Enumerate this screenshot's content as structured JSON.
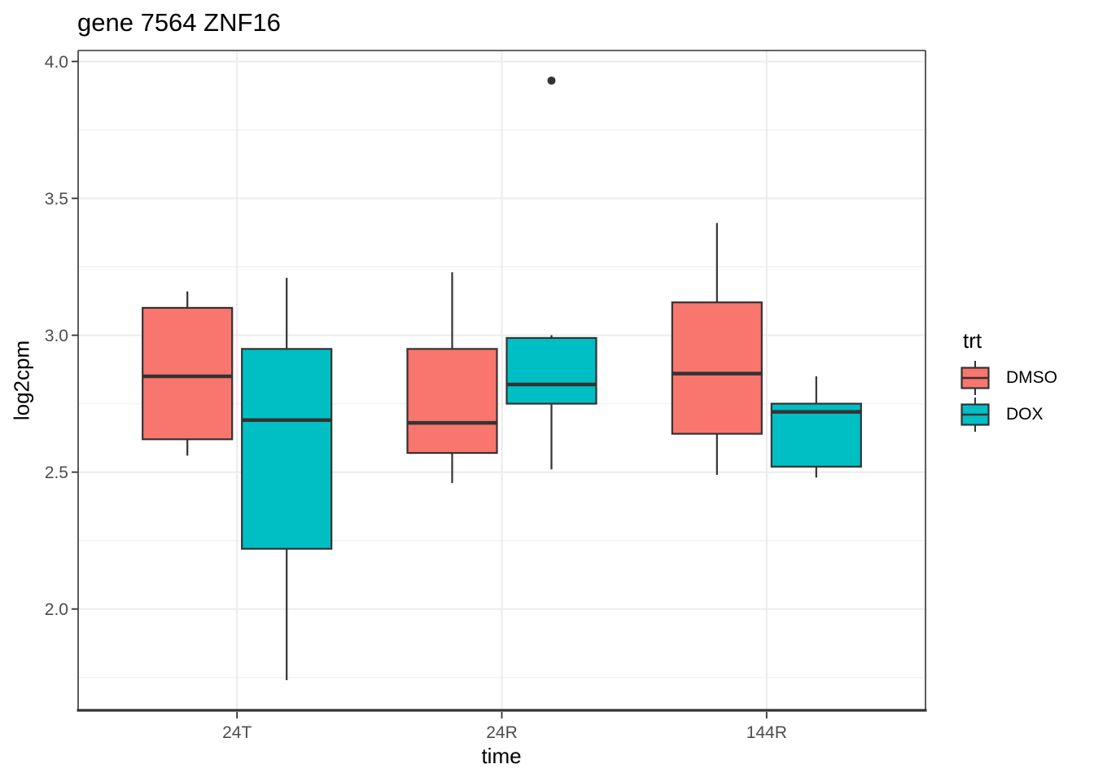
{
  "title": "gene 7564 ZNF16",
  "x_axis": {
    "title": "time",
    "categories": [
      "24T",
      "24R",
      "144R"
    ]
  },
  "y_axis": {
    "title": "log2cpm",
    "tick_labels": [
      "4.0",
      "3.5",
      "3.0",
      "2.5",
      "2.0"
    ]
  },
  "legend": {
    "title": "trt",
    "entries": [
      {
        "label": "DMSO",
        "color": "#F8766D"
      },
      {
        "label": "DOX",
        "color": "#00BFC4"
      }
    ]
  },
  "colors": {
    "box_border": "#333333",
    "median_line": "#333333",
    "outlier": "#333333",
    "panel_border": "#333333",
    "axis_line": "#333333",
    "grid_major": "#EBEBEB",
    "grid_minor": "#F1F1F1",
    "tick_label": "#4D4D4D",
    "background": "#FFFFFF"
  },
  "chart_data": {
    "type": "boxplot",
    "title": "gene 7564 ZNF16",
    "xlabel": "time",
    "ylabel": "log2cpm",
    "categories": [
      "24T",
      "24R",
      "144R"
    ],
    "ylim": [
      1.63,
      4.04
    ],
    "yticks": [
      4.0,
      3.5,
      3.0,
      2.5,
      2.0
    ],
    "yminor": [
      3.75,
      3.25,
      2.75,
      2.25,
      1.75
    ],
    "grid": true,
    "legend_position": "right",
    "series": [
      {
        "name": "DMSO",
        "color": "#F8766D",
        "boxes": [
          {
            "category": "24T",
            "whisker_low": 2.56,
            "q1": 2.62,
            "median": 2.85,
            "q3": 3.1,
            "whisker_high": 3.16,
            "outliers": []
          },
          {
            "category": "24R",
            "whisker_low": 2.46,
            "q1": 2.57,
            "median": 2.68,
            "q3": 2.95,
            "whisker_high": 3.23,
            "outliers": []
          },
          {
            "category": "144R",
            "whisker_low": 2.49,
            "q1": 2.64,
            "median": 2.86,
            "q3": 3.12,
            "whisker_high": 3.41,
            "outliers": []
          }
        ]
      },
      {
        "name": "DOX",
        "color": "#00BFC4",
        "boxes": [
          {
            "category": "24T",
            "whisker_low": 1.74,
            "q1": 2.22,
            "median": 2.69,
            "q3": 2.95,
            "whisker_high": 3.21,
            "outliers": []
          },
          {
            "category": "24R",
            "whisker_low": 2.51,
            "q1": 2.75,
            "median": 2.82,
            "q3": 2.99,
            "whisker_high": 3.0,
            "outliers": [
              3.93
            ]
          },
          {
            "category": "144R",
            "whisker_low": 2.48,
            "q1": 2.52,
            "median": 2.72,
            "q3": 2.75,
            "whisker_high": 2.85,
            "outliers": []
          }
        ]
      }
    ]
  }
}
